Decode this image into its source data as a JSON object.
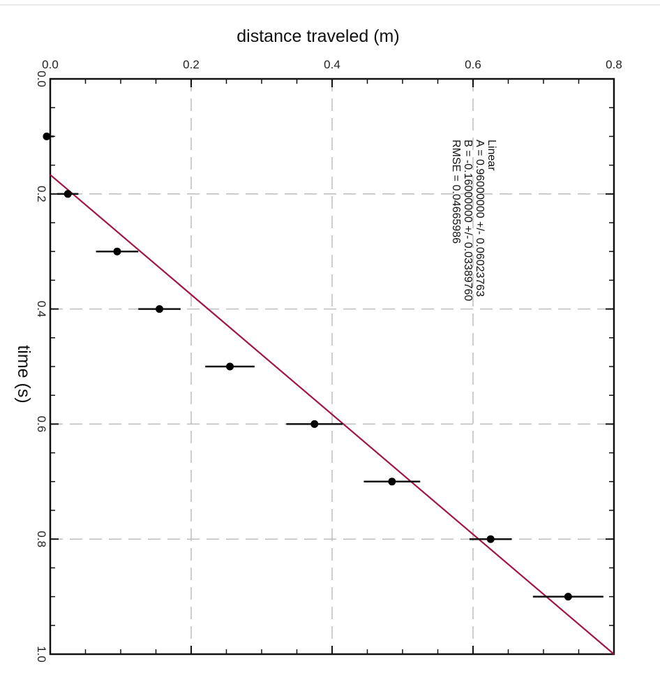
{
  "chart_data": {
    "type": "scatter",
    "title": "",
    "xlabel": "distance traveled    (m)",
    "ylabel": "time    (s)",
    "xlim": [
      0.0,
      0.8
    ],
    "ylim": [
      0.0,
      1.0
    ],
    "y_inverted": true,
    "x_axis_position": "top",
    "grid": true,
    "x_ticks": [
      "0.0",
      "0.2",
      "0.4",
      "0.6",
      "0.8"
    ],
    "y_ticks": [
      "0.0",
      "0.2",
      "0.4",
      "0.6",
      "0.8",
      "1.0"
    ],
    "y_tick_labels_rotated": true,
    "series": [
      {
        "points": [
          {
            "x": -0.005,
            "y": 0.1,
            "xerr": 0.01
          },
          {
            "x": 0.025,
            "y": 0.2,
            "xerr": 0.015
          },
          {
            "x": 0.095,
            "y": 0.3,
            "xerr": 0.03
          },
          {
            "x": 0.155,
            "y": 0.4,
            "xerr": 0.03
          },
          {
            "x": 0.255,
            "y": 0.5,
            "xerr": 0.035
          },
          {
            "x": 0.375,
            "y": 0.6,
            "xerr": 0.04
          },
          {
            "x": 0.485,
            "y": 0.7,
            "xerr": 0.04
          },
          {
            "x": 0.625,
            "y": 0.8,
            "xerr": 0.03
          },
          {
            "x": 0.735,
            "y": 0.9,
            "xerr": 0.05
          }
        ]
      }
    ],
    "fit": {
      "type": "linear",
      "slope": 0.96,
      "intercept": -0.16,
      "color": "#a0144a"
    },
    "annotation": {
      "lines": [
        "Linear",
        "A = 0.96000000 +/- 0.06023763",
        "B = -0.16000000 +/- 0.03389760",
        "RMSE = 0.04665986"
      ]
    }
  }
}
